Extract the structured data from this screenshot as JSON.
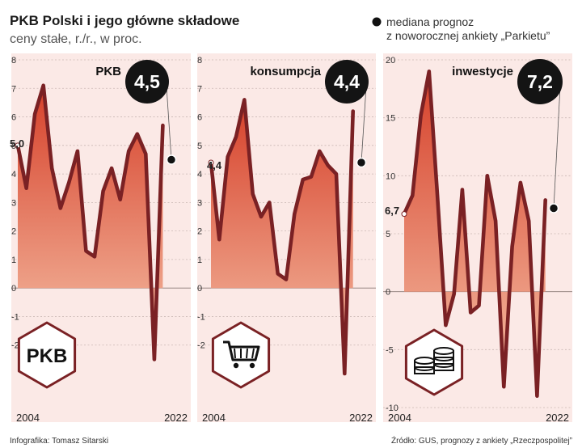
{
  "header": {
    "title": "PKB Polski i jego główne składowe",
    "subtitle": "ceny stałe, r./r., w proc."
  },
  "legend": {
    "line1": "mediana prognoz",
    "line2": "z noworocznej ankiety „Parkietu”"
  },
  "footer": {
    "credit": "Infografika: Tomasz Sitarski",
    "source": "Źródło: GUS, prognozy z ankiety „Rzeczpospolitej”"
  },
  "colors": {
    "line": "#7a2124",
    "fill_top": "#d6402a",
    "fill_bottom": "#f6c2a8",
    "panel_bg": "#fbe9e6",
    "dot": "#111111"
  },
  "chart_data": [
    {
      "type": "area",
      "title": "PKB",
      "icon": "pkb-badge-icon",
      "icon_text": "PKB",
      "x_start_label": "2004",
      "x_end_label": "2022",
      "x": [
        2004,
        2005,
        2006,
        2007,
        2008,
        2009,
        2010,
        2011,
        2012,
        2013,
        2014,
        2015,
        2016,
        2017,
        2018,
        2019,
        2020,
        2021
      ],
      "values": [
        5.0,
        3.5,
        6.1,
        7.1,
        4.2,
        2.8,
        3.7,
        4.8,
        1.3,
        1.1,
        3.4,
        4.2,
        3.1,
        4.8,
        5.4,
        4.7,
        -2.5,
        5.7
      ],
      "start_label": "5,0",
      "forecast": {
        "x": 2022,
        "value": 4.5,
        "label": "4,5"
      },
      "ylim": [
        -3,
        8
      ],
      "yticks": [
        -2,
        -1,
        0,
        1,
        2,
        3,
        4,
        5,
        6,
        7,
        8
      ],
      "ytick_labels": [
        "-2",
        "-1",
        "0",
        "1",
        "2",
        "3",
        "4",
        "5",
        "6",
        "7",
        "8"
      ]
    },
    {
      "type": "area",
      "title": "konsumpcja",
      "icon": "shopping-cart-icon",
      "x_start_label": "2004",
      "x_end_label": "2022",
      "x": [
        2004,
        2005,
        2006,
        2007,
        2008,
        2009,
        2010,
        2011,
        2012,
        2013,
        2014,
        2015,
        2016,
        2017,
        2018,
        2019,
        2020,
        2021
      ],
      "values": [
        4.4,
        1.7,
        4.6,
        5.3,
        6.6,
        3.3,
        2.5,
        3.0,
        0.5,
        0.3,
        2.6,
        3.8,
        3.9,
        4.8,
        4.3,
        4.0,
        -3.0,
        6.2
      ],
      "start_label": "4,4",
      "forecast": {
        "x": 2022,
        "value": 4.4,
        "label": "4,4"
      },
      "ylim": [
        -3,
        8
      ],
      "yticks": [
        -2,
        -1,
        0,
        1,
        2,
        3,
        4,
        5,
        6,
        7,
        8
      ],
      "ytick_labels": [
        "-2",
        "-1",
        "0",
        "1",
        "2",
        "3",
        "4",
        "5",
        "6",
        "7",
        "8"
      ]
    },
    {
      "type": "area",
      "title": "inwestycje",
      "icon": "coins-icon",
      "x_start_label": "2004",
      "x_end_label": "2022",
      "x": [
        2004,
        2005,
        2006,
        2007,
        2008,
        2009,
        2010,
        2011,
        2012,
        2013,
        2014,
        2015,
        2016,
        2017,
        2018,
        2019,
        2020,
        2021
      ],
      "values": [
        6.7,
        8.3,
        15.2,
        19.0,
        8.3,
        -2.9,
        -0.2,
        8.8,
        -1.8,
        -1.2,
        10.0,
        6.1,
        -8.2,
        3.9,
        9.4,
        6.1,
        -9.0,
        7.9
      ],
      "start_label": "6,7",
      "forecast": {
        "x": 2022,
        "value": 7.2,
        "label": "7,2"
      },
      "ylim": [
        -10,
        20
      ],
      "yticks": [
        -10,
        -5,
        0,
        5,
        10,
        15,
        20
      ],
      "ytick_labels": [
        "-10",
        "-5",
        "0",
        "5",
        "10",
        "15",
        "20"
      ]
    }
  ]
}
